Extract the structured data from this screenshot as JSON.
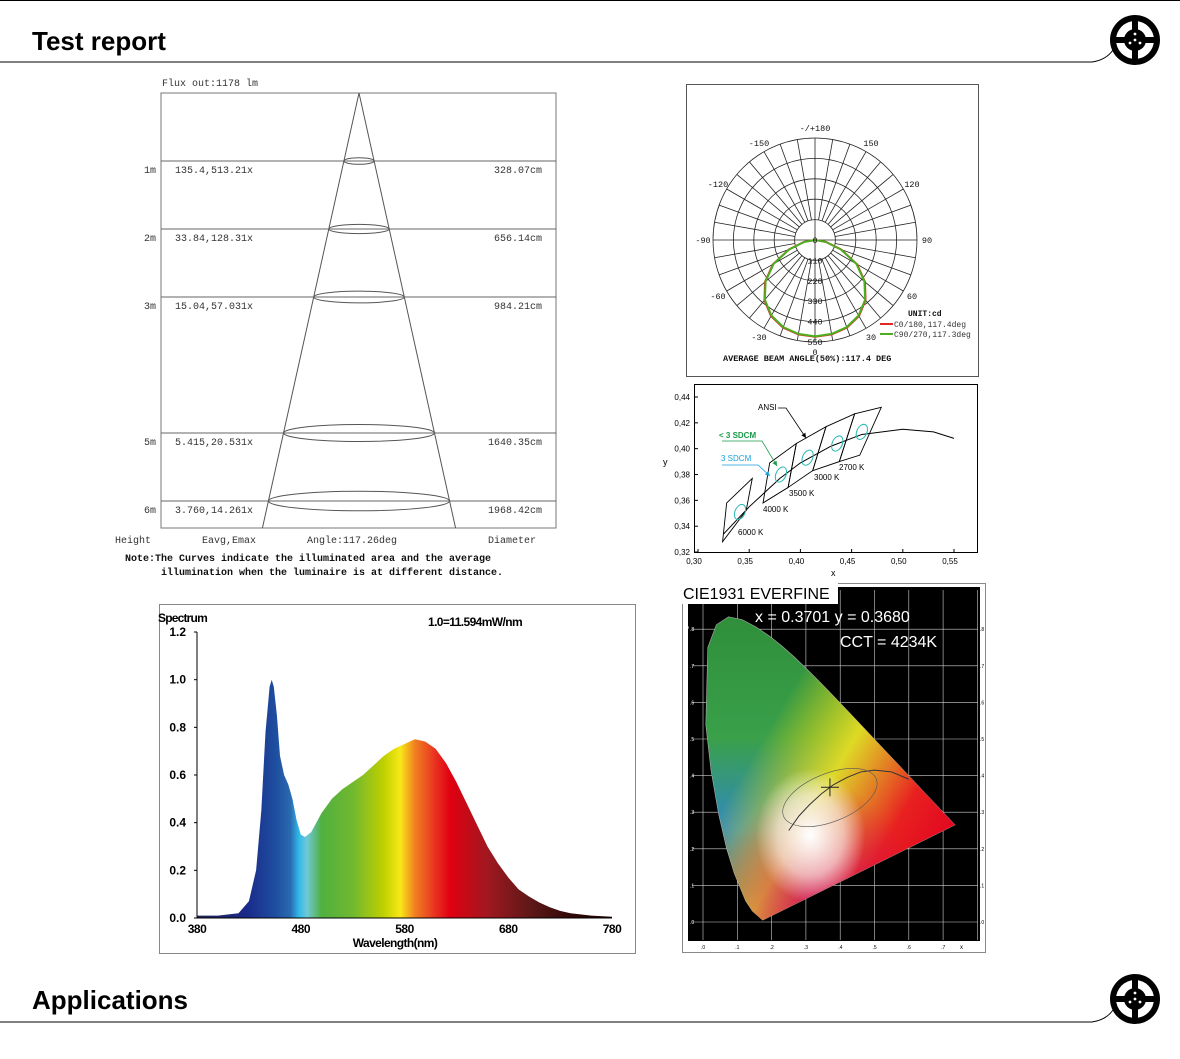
{
  "sections": {
    "test_report": "Test report",
    "applications": "Applications"
  },
  "beam": {
    "flux": "Flux out:1178 lm",
    "rows": [
      {
        "height": 1,
        "height_label": "1m",
        "eavg_emax": "135.4,513.21x",
        "diameter": "328.07cm"
      },
      {
        "height": 2,
        "height_label": "2m",
        "eavg_emax": "33.84,128.31x",
        "diameter": "656.14cm"
      },
      {
        "height": 3,
        "height_label": "3m",
        "eavg_emax": "15.04,57.031x",
        "diameter": "984.21cm"
      },
      {
        "height": 5,
        "height_label": "5m",
        "eavg_emax": "5.415,20.531x",
        "diameter": "1640.35cm"
      },
      {
        "height": 6,
        "height_label": "6m",
        "eavg_emax": "3.760,14.261x",
        "diameter": "1968.42cm"
      }
    ],
    "footer": {
      "height": "Height",
      "eavg": "Eavg,Emax",
      "angle": "Angle:117.26deg",
      "diameter": "Diameter"
    },
    "note_line1": "Note:The Curves indicate the illuminated area and the average",
    "note_line2": "illumination when the luminaire is at different distance."
  },
  "chart_data": [
    {
      "type": "polar",
      "title": "AVERAGE BEAM ANGLE(50%):117.4 DEG",
      "unit": "UNIT:cd",
      "angle_labels": [
        {
          "angle": 180,
          "label": "-/+180"
        },
        {
          "angle": 150,
          "label": "150"
        },
        {
          "angle": -150,
          "label": "-150"
        },
        {
          "angle": 120,
          "label": "120"
        },
        {
          "angle": -120,
          "label": "-120"
        },
        {
          "angle": 90,
          "label": "90"
        },
        {
          "angle": -90,
          "label": "-90"
        },
        {
          "angle": 60,
          "label": "60"
        },
        {
          "angle": -60,
          "label": "-60"
        },
        {
          "angle": 30,
          "label": "30"
        },
        {
          "angle": -30,
          "label": "-30"
        },
        {
          "angle": 0,
          "label": "0"
        }
      ],
      "ring_labels": [
        "0",
        "110",
        "220",
        "330",
        "440",
        "550"
      ],
      "rmax": 550,
      "series": [
        {
          "name": "C0/180,117.4deg",
          "color": "#e52521",
          "gamma": [
            0,
            10,
            20,
            30,
            40,
            50,
            60,
            70,
            80,
            90
          ],
          "cd": [
            522,
            517,
            503,
            474,
            424,
            352,
            262,
            150,
            60,
            0
          ]
        },
        {
          "name": "C90/270,117.3deg",
          "color": "#4caf1e",
          "gamma": [
            0,
            10,
            20,
            30,
            40,
            50,
            60,
            70,
            80,
            90
          ],
          "cd": [
            520,
            514,
            500,
            470,
            420,
            348,
            258,
            148,
            58,
            0
          ]
        }
      ]
    },
    {
      "type": "line",
      "xlabel": "x",
      "ylabel": "y",
      "xlim": [
        0.3,
        0.575
      ],
      "ylim": [
        0.32,
        0.44
      ],
      "xticks": [
        "0,30",
        "0,35",
        "0,40",
        "0,45",
        "0,50",
        "0,55"
      ],
      "xtick_values": [
        0.3,
        0.35,
        0.4,
        0.45,
        0.5,
        0.55
      ],
      "yticks": [
        "0,32",
        "0,34",
        "0,36",
        "0,38",
        "0,40",
        "0,42",
        "0,44"
      ],
      "ytick_values": [
        0.32,
        0.34,
        0.36,
        0.38,
        0.4,
        0.42,
        0.44
      ],
      "planckian": {
        "x": [
          0.325,
          0.35,
          0.38,
          0.4,
          0.43,
          0.46,
          0.5,
          0.53,
          0.55
        ],
        "y": [
          0.334,
          0.355,
          0.377,
          0.389,
          0.402,
          0.411,
          0.415,
          0.413,
          0.408
        ]
      },
      "quads": [
        {
          "label": "6000 K",
          "corners": [
            [
              0.328,
              0.358
            ],
            [
              0.353,
              0.377
            ],
            [
              0.347,
              0.352
            ],
            [
              0.324,
              0.328
            ]
          ],
          "ellipse": [
            0.341,
            0.351
          ]
        },
        {
          "label": "4000 K",
          "corners": [
            [
              0.37,
              0.389
            ],
            [
              0.396,
              0.404
            ],
            [
              0.388,
              0.37
            ],
            [
              0.3635,
              0.358
            ]
          ],
          "ellipse": [
            0.381,
            0.38
          ]
        },
        {
          "label": "3500 K",
          "corners": [
            [
              0.396,
              0.404
            ],
            [
              0.425,
              0.417
            ],
            [
              0.412,
              0.383
            ],
            [
              0.388,
              0.37
            ]
          ],
          "ellipse": [
            0.407,
            0.393
          ]
        },
        {
          "label": "3000 K",
          "corners": [
            [
              0.425,
              0.417
            ],
            [
              0.453,
              0.427
            ],
            [
              0.438,
              0.39
            ],
            [
              0.412,
              0.383
            ]
          ],
          "ellipse": [
            0.436,
            0.404
          ]
        },
        {
          "label": "2700 K",
          "corners": [
            [
              0.453,
              0.427
            ],
            [
              0.479,
              0.432
            ],
            [
              0.458,
              0.395
            ],
            [
              0.438,
              0.39
            ]
          ],
          "ellipse": [
            0.46,
            0.413
          ]
        }
      ],
      "annotations": {
        "ansi": "ANSI",
        "lt3sdcm": "< 3 SDCM",
        "sdcm3": "3 SDCM"
      },
      "colors": {
        "lt3sdcm": "#1a9a4a",
        "sdcm3": "#1aa0e0",
        "ellipse": "#2ab8b0"
      }
    },
    {
      "type": "area",
      "title": "Spectrum",
      "annotation": "1.0=11.594mW/nm",
      "xlabel": "Wavelength(nm)",
      "xlim": [
        380,
        780
      ],
      "ylim": [
        0,
        1.2
      ],
      "xticks": [
        380,
        480,
        580,
        680,
        780
      ],
      "yticks": [
        "0.0",
        "0.2",
        "0.4",
        "0.6",
        "0.8",
        "1.0",
        "1.2"
      ],
      "x": [
        380,
        400,
        420,
        430,
        437,
        442,
        446,
        450,
        452,
        454,
        457,
        460,
        464,
        468,
        472,
        476,
        480,
        484,
        490,
        495,
        500,
        505,
        510,
        520,
        530,
        540,
        550,
        560,
        570,
        580,
        590,
        595,
        600,
        610,
        620,
        630,
        640,
        650,
        660,
        670,
        680,
        690,
        700,
        710,
        720,
        730,
        740,
        760,
        780
      ],
      "y": [
        0.01,
        0.01,
        0.02,
        0.07,
        0.2,
        0.45,
        0.78,
        0.97,
        1.0,
        0.97,
        0.85,
        0.68,
        0.6,
        0.56,
        0.5,
        0.41,
        0.35,
        0.34,
        0.36,
        0.4,
        0.44,
        0.47,
        0.5,
        0.54,
        0.57,
        0.6,
        0.64,
        0.68,
        0.71,
        0.73,
        0.75,
        0.745,
        0.74,
        0.71,
        0.65,
        0.57,
        0.48,
        0.39,
        0.3,
        0.23,
        0.17,
        0.12,
        0.09,
        0.065,
        0.045,
        0.03,
        0.02,
        0.01,
        0.005
      ]
    },
    {
      "type": "scatter",
      "title": "CIE1931 EVERFINE",
      "readout": "x = 0.3701 y = 0.3680",
      "cct": "CCT = 4234K",
      "point": {
        "x": 0.3701,
        "y": 0.368
      },
      "xticks": [
        ".0",
        ".1",
        ".2",
        ".3",
        ".4",
        ".5",
        ".6",
        ".7"
      ],
      "yticks": [
        ".0",
        ".1",
        ".2",
        ".3",
        ".4",
        ".5",
        ".6",
        ".7",
        ".8"
      ],
      "xlabel": "x",
      "ylabel": "y"
    }
  ]
}
